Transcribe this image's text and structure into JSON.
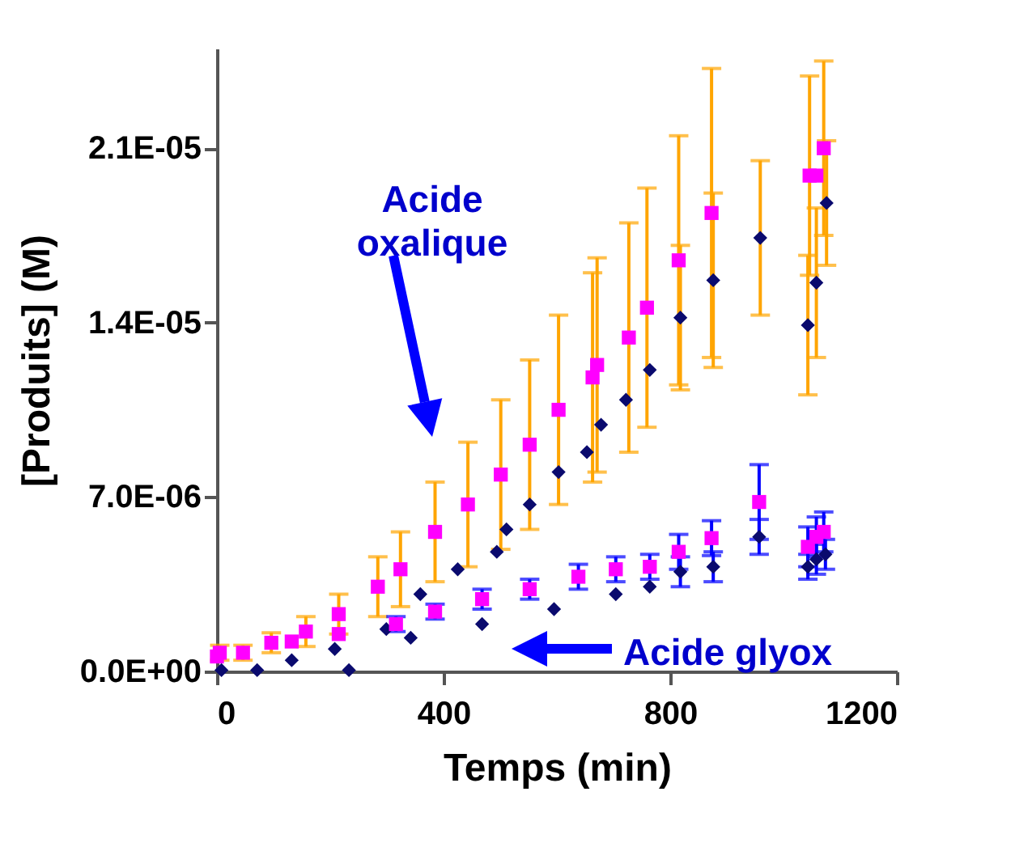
{
  "chart_data": {
    "type": "scatter",
    "xlabel": "Temps (min)",
    "ylabel": "[Produits] (M)",
    "xlim": [
      0,
      1200
    ],
    "xticks": [
      0,
      400,
      800,
      1200
    ],
    "ylim": [
      0,
      2.5e-05
    ],
    "yticks": [
      {
        "value": 0,
        "label": "0.0E+00"
      },
      {
        "value": 7e-06,
        "label": "7.0E-06"
      },
      {
        "value": 1.4e-05,
        "label": "1.4E-05"
      },
      {
        "value": 2.1e-05,
        "label": "2.1E-05"
      }
    ],
    "series": [
      {
        "color": "#ff00ff",
        "marker": "square",
        "x": [
          5,
          46,
          96,
          157,
          215,
          284,
          324,
          385,
          443,
          501,
          552,
          603,
          663,
          671,
          727,
          759,
          815,
          873,
          1046,
          1058,
          1071
        ],
        "values": [
          7.5e-07,
          7.5e-07,
          1.15e-06,
          1.6e-06,
          2.3e-06,
          3.4e-06,
          4.1e-06,
          5.6e-06,
          6.7e-06,
          7.9e-06,
          9.1e-06,
          1.05e-05,
          1.18e-05,
          1.23e-05,
          1.34e-05,
          1.46e-05,
          1.65e-05,
          1.84e-05,
          1.99e-05,
          1.99e-05,
          2.1e-05
        ],
        "errors": [
          3e-07,
          3e-07,
          4e-07,
          6e-07,
          8e-07,
          1.2e-06,
          1.5e-06,
          2e-06,
          2.5e-06,
          3e-06,
          3.4e-06,
          3.8e-06,
          4.2e-06,
          4.3e-06,
          4.6e-06,
          4.8e-06,
          5e-06,
          5.8e-06,
          4e-06,
          null,
          3.5e-06
        ]
      },
      {
        "color": "#0a0a6e",
        "marker": "diamond",
        "x": [
          233,
          299,
          359,
          425,
          494,
          511,
          552,
          603,
          653,
          678,
          722,
          764,
          818,
          876,
          959,
          1043,
          1058,
          1076
        ],
        "values": [
          5e-08,
          1.7e-06,
          3.1e-06,
          4.1e-06,
          4.8e-06,
          5.7e-06,
          6.7e-06,
          8e-06,
          8.8e-06,
          9.9e-06,
          1.09e-05,
          1.21e-05,
          1.42e-05,
          1.57e-05,
          1.74e-05,
          1.39e-05,
          1.56e-05,
          1.88e-05
        ],
        "errors": [
          null,
          null,
          null,
          null,
          null,
          null,
          null,
          null,
          null,
          null,
          null,
          null,
          2.9e-06,
          3.5e-06,
          3.1e-06,
          2.8e-06,
          3e-06,
          2.5e-06
        ]
      },
      {
        "color": "#ff00ff",
        "marker": "square",
        "x": [
          0,
          132,
          215,
          316,
          385,
          468,
          552,
          638,
          704,
          764,
          815,
          873,
          957,
          1043,
          1058,
          1071
        ],
        "values": [
          6e-07,
          1.2e-06,
          1.5e-06,
          1.9e-06,
          2.4e-06,
          2.9e-06,
          3.3e-06,
          3.8e-06,
          4.1e-06,
          4.2e-06,
          4.8e-06,
          5.35e-06,
          6.8e-06,
          5e-06,
          5.4e-06,
          5.6e-06
        ],
        "errors": [
          null,
          null,
          null,
          3e-07,
          3e-07,
          4e-07,
          4e-07,
          5e-07,
          5e-07,
          5e-07,
          7e-07,
          7e-07,
          1.5e-06,
          8e-07,
          8e-07,
          8e-07
        ]
      },
      {
        "color": "#0a0a6e",
        "marker": "diamond",
        "x": [
          8,
          71,
          132,
          208,
          342,
          468,
          595,
          704,
          764,
          818,
          876,
          957,
          1043,
          1058,
          1074
        ],
        "values": [
          5e-08,
          5e-08,
          4.5e-07,
          9e-07,
          1.35e-06,
          1.9e-06,
          2.5e-06,
          3.1e-06,
          3.4e-06,
          4e-06,
          4.2e-06,
          5.4e-06,
          4.2e-06,
          4.5e-06,
          4.7e-06
        ],
        "errors": [
          null,
          null,
          null,
          null,
          null,
          null,
          null,
          null,
          null,
          6e-07,
          6e-07,
          7e-07,
          5e-07,
          6e-07,
          6e-07
        ]
      }
    ],
    "annotations": [
      "Acide oxalique",
      "Acide glyox"
    ]
  }
}
